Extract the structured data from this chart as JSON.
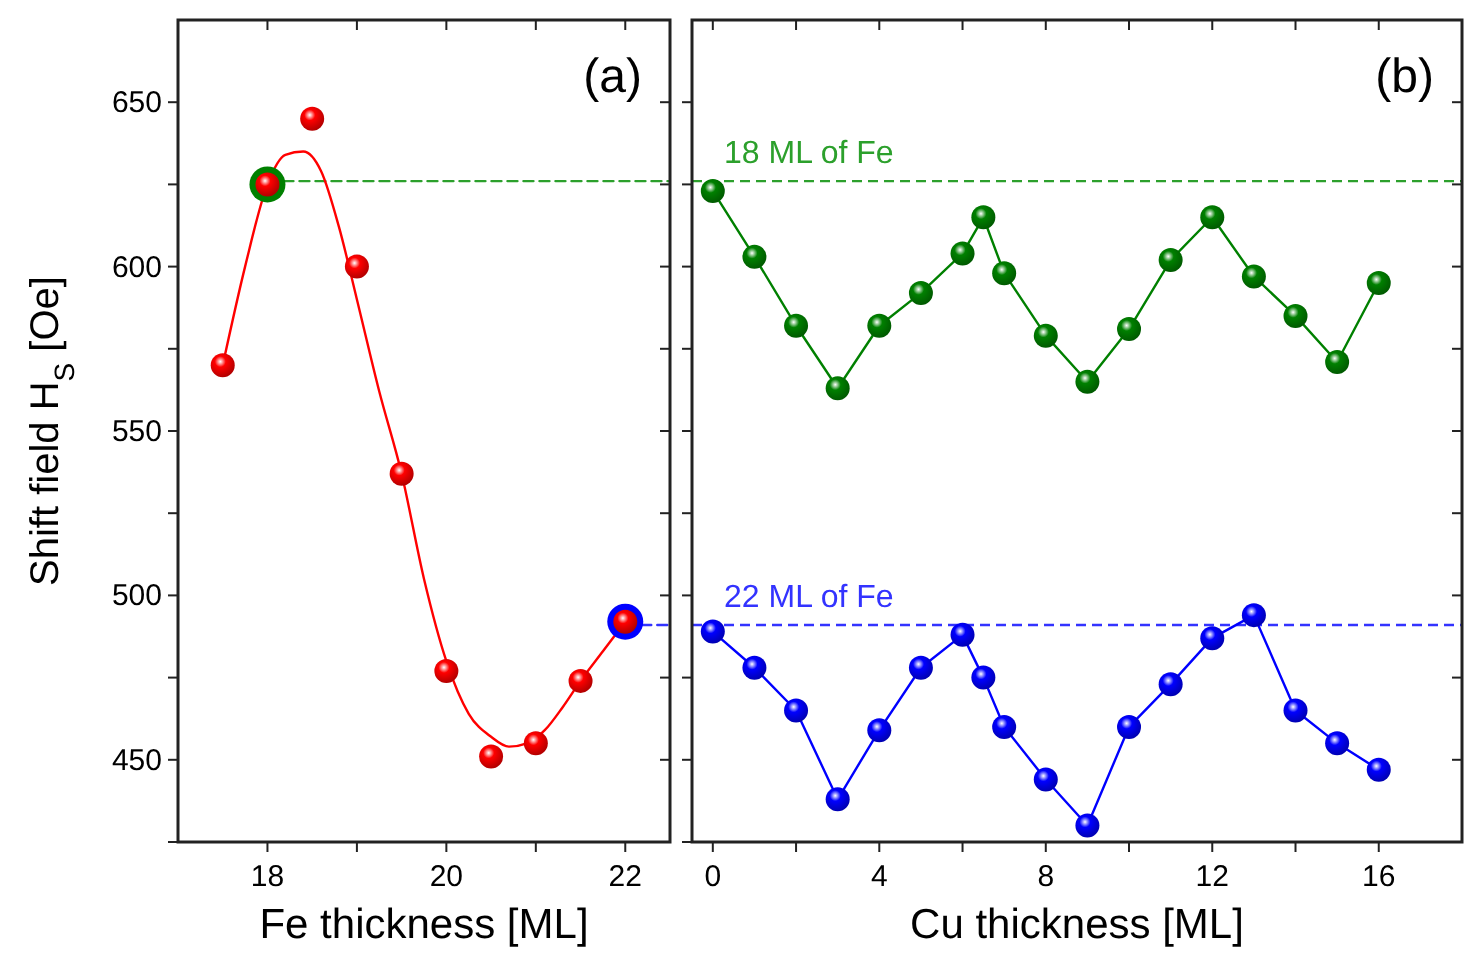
{
  "chart_data": [
    {
      "type": "scatter",
      "xlabel": "Fe thickness [ML]",
      "ylabel": "Shift field H$_{S}$ [Oe]",
      "annotations": [
        "(a)"
      ],
      "xlim": [
        17,
        22.5
      ],
      "ylim": [
        425,
        675
      ],
      "xticks": [
        18,
        {
          "value": 19,
          "label": null
        },
        20,
        {
          "value": 21,
          "label": null
        },
        22
      ],
      "yticks": [
        {
          "value": 425,
          "label": null
        },
        450,
        {
          "value": 475,
          "label": null
        },
        500,
        {
          "value": 525,
          "label": null
        },
        550,
        {
          "value": 575,
          "label": null
        },
        600,
        {
          "value": 625,
          "label": null
        },
        650
      ],
      "series": [
        {
          "type": "line",
          "line_style": "dashed",
          "color": "#2ca02c",
          "x": [
            18,
            22.5
          ],
          "values": [
            626,
            626
          ]
        },
        {
          "type": "line",
          "line_style": "dashed",
          "color": "#3333ff",
          "x": [
            22,
            22.5
          ],
          "values": [
            491,
            491
          ]
        },
        {
          "type": "line",
          "marker": "none",
          "color": "#ff0000",
          "x": [
            17.5,
            17.75,
            18,
            18.2,
            18.4,
            18.6,
            18.8,
            19,
            19.25,
            19.5,
            19.75,
            20,
            20.25,
            20.5,
            20.7,
            20.9,
            21.1,
            21.3,
            21.5,
            21.75,
            22
          ],
          "values": [
            570,
            600,
            625,
            634,
            635,
            629,
            612,
            590,
            562,
            537,
            505,
            480,
            464,
            457,
            454,
            455,
            459,
            466,
            474,
            483,
            492
          ]
        },
        {
          "type": "bubble",
          "color": "#008000",
          "x": [
            18
          ],
          "values": [
            625
          ],
          "sizes": [
            1
          ]
        },
        {
          "type": "bubble",
          "color": "#0000ff",
          "x": [
            22
          ],
          "values": [
            492
          ],
          "sizes": [
            1
          ]
        },
        {
          "type": "scatter",
          "marker": "circle",
          "color": "#ff0000",
          "x": [
            17.5,
            18,
            18.5,
            19,
            19.5,
            20,
            20.5,
            21,
            21.5,
            22
          ],
          "values": [
            570,
            625,
            645,
            600,
            537,
            477,
            451,
            455,
            474,
            492
          ]
        }
      ]
    },
    {
      "type": "line",
      "xlabel": "Cu thickness  [ML]",
      "annotations": [
        "(b)"
      ],
      "tick_labels": "x",
      "xlim": [
        -0.5,
        18
      ],
      "ylim": [
        425,
        675
      ],
      "xticks": [
        0,
        {
          "value": 2,
          "label": null
        },
        4,
        {
          "value": 6,
          "label": null
        },
        8,
        {
          "value": 10,
          "label": null
        },
        12,
        {
          "value": 14,
          "label": null
        },
        16
      ],
      "yticks": [
        {
          "value": 425,
          "label": null
        },
        450,
        {
          "value": 475,
          "label": null
        },
        500,
        {
          "value": 525,
          "label": null
        },
        550,
        {
          "value": 575,
          "label": null
        },
        600,
        {
          "value": 625,
          "label": null
        },
        650
      ],
      "ref_lines": [
        {
          "axis": "y",
          "value": 626,
          "label": "18 ML of Fe",
          "color": "#2ca02c",
          "line_style": "dashed"
        },
        {
          "axis": "y",
          "value": 491,
          "label": "22 ML of Fe",
          "color": "#3333ff",
          "line_style": "dashed"
        }
      ],
      "series": [
        {
          "marker": "circle",
          "line_style": "solid",
          "color": "#008000",
          "x": [
            0,
            1,
            2,
            3,
            4,
            5,
            6,
            6.5,
            7,
            8,
            9,
            10,
            11,
            12,
            13,
            14,
            15,
            16
          ],
          "values": [
            623,
            603,
            582,
            563,
            582,
            592,
            604,
            615,
            598,
            579,
            565,
            581,
            602,
            615,
            597,
            585,
            571,
            595
          ]
        },
        {
          "marker": "circle",
          "line_style": "solid",
          "color": "#0000ff",
          "x": [
            0,
            1,
            2,
            3,
            4,
            5,
            6,
            6.5,
            7,
            8,
            9,
            10,
            11,
            12,
            13,
            14,
            15,
            16
          ],
          "values": [
            489,
            478,
            465,
            438,
            459,
            478,
            488,
            475,
            460,
            444,
            430,
            460,
            473,
            487,
            494,
            465,
            455,
            447
          ]
        }
      ]
    }
  ]
}
